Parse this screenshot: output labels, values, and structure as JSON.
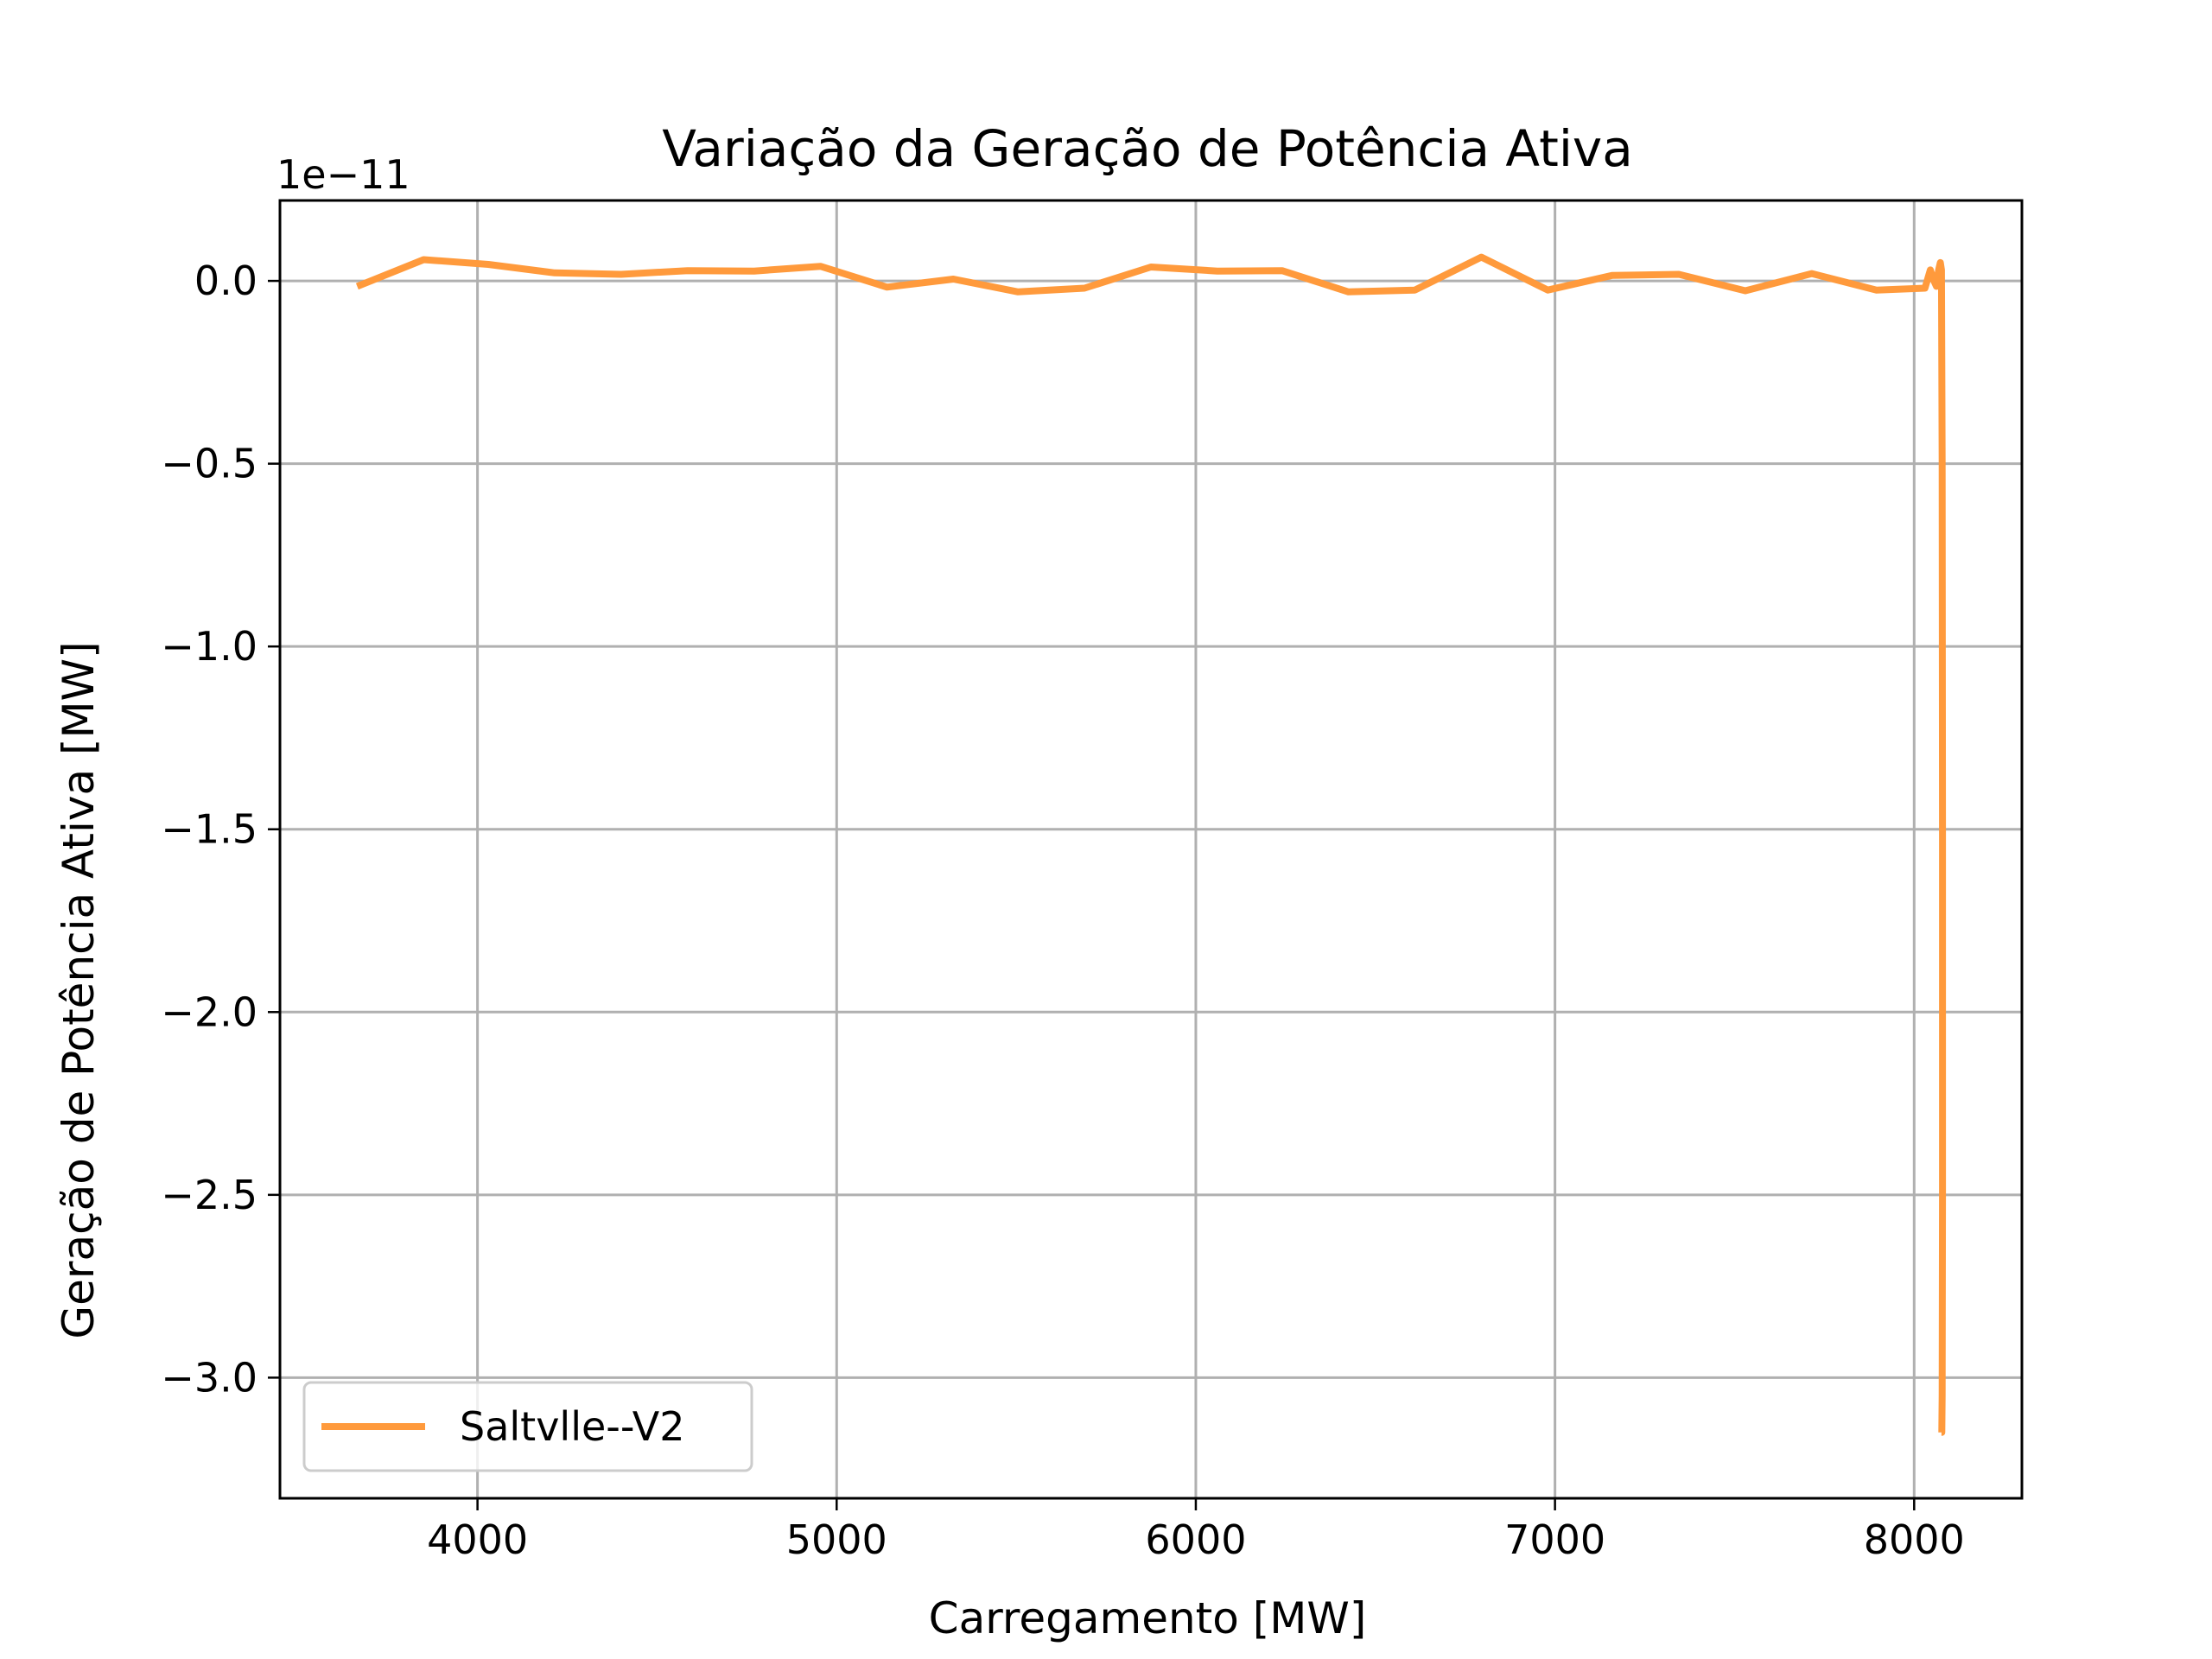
{
  "chart_data": {
    "type": "line",
    "title": "Variação da Geração de Potência Ativa",
    "xlabel": "Carregamento [MW]",
    "ylabel": "Geração de Potência Ativa [MW]",
    "y_offset_label": "1e−11",
    "xlim": [
      3450,
      8300
    ],
    "ylim": [
      -3.33,
      0.22
    ],
    "x_ticks": [
      {
        "value": 4000,
        "label": "4000"
      },
      {
        "value": 5000,
        "label": "5000"
      },
      {
        "value": 6000,
        "label": "6000"
      },
      {
        "value": 7000,
        "label": "7000"
      },
      {
        "value": 8000,
        "label": "8000"
      }
    ],
    "y_ticks": [
      {
        "value": 0.0,
        "label": "0.0"
      },
      {
        "value": -0.5,
        "label": "−0.5"
      },
      {
        "value": -1.0,
        "label": "−1.0"
      },
      {
        "value": -1.5,
        "label": "−1.5"
      },
      {
        "value": -2.0,
        "label": "−2.0"
      },
      {
        "value": -2.5,
        "label": "−2.5"
      },
      {
        "value": -3.0,
        "label": "−3.0"
      }
    ],
    "grid": true,
    "legend": {
      "position": "lower-left"
    },
    "series": [
      {
        "name": "Saltvlle--V2",
        "color": "#ff9a3c",
        "x": [
          3665,
          3850,
          4030,
          4215,
          4400,
          4585,
          4770,
          4955,
          5140,
          5325,
          5505,
          5690,
          5875,
          6060,
          6240,
          6425,
          6610,
          6795,
          6980,
          7160,
          7345,
          7530,
          7715,
          7895,
          8030,
          8045,
          8055,
          8062,
          8068,
          8073,
          8076,
          8078,
          8079,
          8079,
          8078,
          8077,
          8076
        ],
        "y": [
          -0.015,
          0.058,
          0.045,
          0.022,
          0.018,
          0.028,
          0.027,
          0.04,
          -0.017,
          0.005,
          -0.03,
          -0.02,
          0.038,
          0.027,
          0.028,
          -0.03,
          -0.025,
          0.065,
          -0.025,
          0.015,
          0.018,
          -0.027,
          0.02,
          -0.025,
          -0.02,
          0.03,
          0.0,
          -0.015,
          0.03,
          0.05,
          0.03,
          -0.5,
          -1.5,
          -2.5,
          -3.05,
          -3.15,
          -3.15
        ]
      }
    ]
  }
}
